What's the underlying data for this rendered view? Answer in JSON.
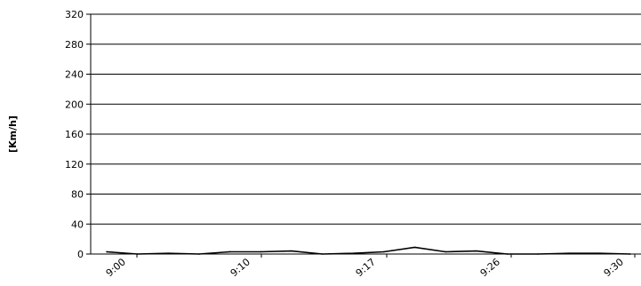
{
  "chart_data": {
    "type": "line",
    "title": "",
    "xlabel": "",
    "ylabel": "[Km/h]",
    "ylim": [
      0,
      320
    ],
    "yticks": [
      0,
      40,
      80,
      120,
      160,
      200,
      240,
      280,
      320
    ],
    "xtick_labels": [
      "9:00",
      "9:10",
      "9:17",
      "9:26",
      "9:30"
    ],
    "grid": true,
    "legend": "none",
    "line_color": "#000000",
    "series": [
      {
        "values": [
          3,
          0,
          1,
          0,
          3,
          3,
          4,
          0,
          1,
          3,
          9,
          3,
          4,
          0,
          0,
          1,
          1,
          0
        ]
      }
    ]
  }
}
